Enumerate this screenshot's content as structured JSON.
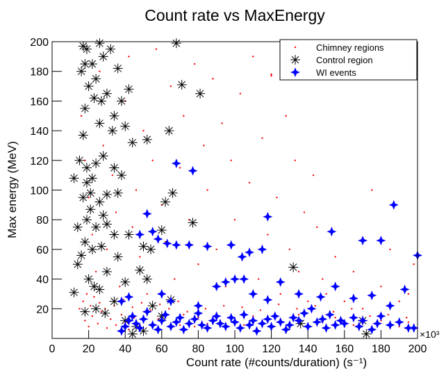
{
  "chart_data": {
    "type": "scatter",
    "title": "Count rate vs MaxEnergy",
    "x_label": "Count rate (#counts/duration) (s⁻¹)",
    "y_label": "Max energy (MeV)",
    "x_multiplier": "×10³",
    "xlim": [
      0,
      200
    ],
    "xticks": [
      0,
      20,
      40,
      60,
      80,
      100,
      120,
      140,
      160,
      180,
      200
    ],
    "ylim": [
      0,
      200
    ],
    "yticks": [
      20,
      40,
      60,
      80,
      100,
      120,
      140,
      160,
      180,
      200
    ],
    "legend": "top-right",
    "series": [
      {
        "name": "Chimney regions",
        "color": "#ff0000",
        "marker": "dot",
        "x": [
          18,
          20,
          22,
          25,
          27,
          30,
          32,
          35,
          38,
          40,
          42,
          45,
          48,
          50,
          52,
          55,
          58,
          60,
          62,
          65,
          68,
          70,
          72,
          75,
          78,
          80,
          85,
          90,
          95,
          100,
          105,
          110,
          115,
          120,
          125,
          130,
          135,
          140,
          145,
          150,
          155,
          160,
          165,
          170,
          175,
          180,
          185,
          190,
          195,
          16,
          18,
          20,
          22,
          24,
          26,
          28,
          30,
          33,
          35,
          37,
          40,
          42,
          44,
          46,
          48,
          50,
          52,
          55,
          57,
          60,
          62,
          65,
          67,
          70,
          72,
          75,
          78,
          80,
          83,
          85,
          88,
          90,
          93,
          95,
          98,
          100,
          103,
          105,
          108,
          110,
          113,
          115,
          118,
          120,
          123,
          125,
          128,
          130,
          133,
          135,
          138,
          140,
          143,
          145,
          148,
          150,
          155,
          160,
          165,
          170,
          175,
          180,
          185,
          190,
          195,
          198,
          135,
          120,
          140,
          15,
          17,
          19,
          21,
          23,
          26,
          29,
          34,
          39,
          44,
          49,
          54,
          59,
          64,
          69,
          74,
          84,
          94,
          104,
          114,
          124,
          134,
          144,
          154,
          164,
          174,
          184,
          194
        ],
        "values": [
          12,
          8,
          15,
          10,
          18,
          7,
          13,
          9,
          16,
          11,
          6,
          14,
          9,
          12,
          17,
          8,
          13,
          10,
          15,
          7,
          12,
          9,
          16,
          11,
          8,
          14,
          10,
          13,
          8,
          12,
          9,
          15,
          11,
          7,
          13,
          10,
          16,
          9,
          12,
          8,
          14,
          11,
          9,
          13,
          7,
          12,
          10,
          8,
          11,
          150,
          120,
          95,
          70,
          45,
          180,
          130,
          60,
          110,
          85,
          35,
          160,
          190,
          75,
          100,
          55,
          140,
          30,
          120,
          195,
          90,
          65,
          170,
          40,
          115,
          150,
          80,
          185,
          50,
          130,
          100,
          175,
          60,
          145,
          35,
          120,
          80,
          165,
          55,
          105,
          190,
          40,
          135,
          70,
          178,
          95,
          30,
          150,
          60,
          120,
          45,
          85,
          25,
          110,
          75,
          40,
          30,
          55,
          25,
          45,
          20,
          100,
          35,
          60,
          25,
          30,
          50,
          200,
          177,
          180,
          20,
          25,
          30,
          22,
          28,
          24,
          20,
          22,
          26,
          21,
          24,
          19,
          23,
          20,
          25,
          18,
          20,
          22,
          21,
          19,
          23,
          20,
          22,
          18,
          20,
          15,
          16,
          14
        ]
      },
      {
        "name": "Control region",
        "color": "#000000",
        "marker": "asterisk",
        "x": [
          17,
          19,
          26,
          18,
          16,
          22,
          28,
          32,
          24,
          20,
          36,
          23,
          18,
          27,
          30,
          38,
          42,
          34,
          17,
          26,
          33,
          40,
          44,
          52,
          64,
          68,
          71,
          81,
          15,
          19,
          24,
          28,
          22,
          12,
          34,
          38,
          19,
          21,
          26,
          17,
          30,
          36,
          62,
          66,
          21,
          28,
          19,
          14,
          24,
          30,
          34,
          18,
          42,
          60,
          77,
          16,
          22,
          27,
          36,
          50,
          54,
          14,
          20,
          23,
          26,
          30,
          40,
          48,
          52,
          12,
          18,
          24,
          29,
          34,
          40,
          46,
          50,
          55,
          60,
          65,
          132,
          136,
          170,
          172,
          44
        ],
        "values": [
          197,
          195,
          199,
          185,
          180,
          185,
          190,
          195,
          175,
          170,
          182,
          162,
          155,
          160,
          165,
          160,
          168,
          150,
          137,
          145,
          140,
          143,
          132,
          134,
          140,
          199,
          171,
          165,
          120,
          115,
          118,
          123,
          108,
          108,
          115,
          110,
          105,
          98,
          92,
          95,
          97,
          98,
          92,
          98,
          87,
          83,
          80,
          75,
          75,
          77,
          70,
          65,
          70,
          73,
          78,
          56,
          60,
          62,
          55,
          62,
          60,
          50,
          40,
          35,
          33,
          45,
          38,
          46,
          40,
          31,
          18,
          20,
          17,
          25,
          12,
          8,
          5,
          22,
          15,
          26,
          48,
          10,
          12,
          3,
          3
        ]
      },
      {
        "name": "WI events",
        "color": "#0000ff",
        "marker": "star",
        "x": [
          38,
          40,
          42,
          44,
          46,
          48,
          50,
          52,
          55,
          58,
          60,
          62,
          65,
          68,
          70,
          72,
          75,
          78,
          80,
          82,
          85,
          88,
          90,
          92,
          95,
          98,
          100,
          103,
          105,
          108,
          110,
          112,
          115,
          118,
          120,
          122,
          125,
          128,
          130,
          132,
          135,
          138,
          140,
          142,
          145,
          148,
          150,
          152,
          155,
          158,
          160,
          165,
          168,
          170,
          175,
          178,
          180,
          185,
          190,
          195,
          38,
          42,
          60,
          65,
          80,
          90,
          95,
          100,
          105,
          110,
          118,
          125,
          135,
          147,
          155,
          165,
          175,
          185,
          193,
          198,
          48,
          55,
          58,
          63,
          68,
          75,
          85,
          98,
          104,
          108,
          115,
          118,
          52,
          68,
          77,
          153,
          170,
          180,
          187,
          200
        ],
        "values": [
          5,
          8,
          12,
          15,
          10,
          7,
          13,
          18,
          9,
          6,
          12,
          16,
          8,
          11,
          14,
          6,
          10,
          13,
          17,
          9,
          7,
          12,
          15,
          10,
          8,
          14,
          11,
          7,
          16,
          9,
          12,
          5,
          10,
          13,
          8,
          15,
          11,
          6,
          9,
          14,
          12,
          17,
          8,
          20,
          11,
          13,
          7,
          16,
          9,
          12,
          10,
          14,
          8,
          12,
          6,
          10,
          15,
          9,
          11,
          7,
          25,
          28,
          30,
          25,
          22,
          35,
          38,
          40,
          40,
          30,
          26,
          38,
          30,
          28,
          35,
          27,
          29,
          22,
          33,
          7,
          70,
          72,
          67,
          64,
          63,
          63,
          62,
          63,
          55,
          58,
          60,
          82,
          84,
          118,
          113,
          72,
          66,
          66,
          90,
          56
        ]
      }
    ]
  }
}
